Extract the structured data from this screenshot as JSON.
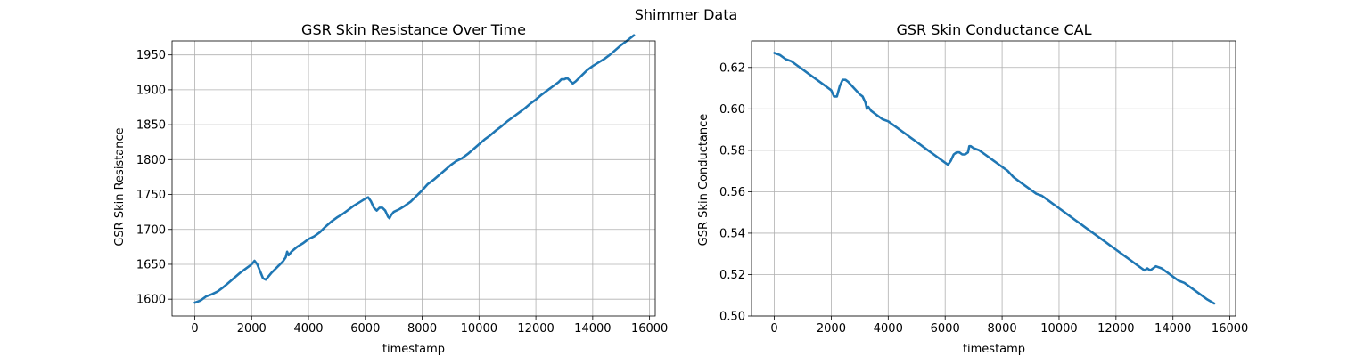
{
  "figure_title": "Shimmer Data",
  "colors": {
    "line": "#1f77b4",
    "grid": "#b0b0b0",
    "axis": "#000000"
  },
  "chart_data": [
    {
      "type": "line",
      "title": "GSR Skin Resistance Over Time",
      "xlabel": "timestamp",
      "ylabel": "GSR Skin Resistance",
      "xlim": [
        -800,
        16200
      ],
      "ylim": [
        1576,
        1970
      ],
      "xticks": [
        0,
        2000,
        4000,
        6000,
        8000,
        10000,
        12000,
        14000,
        16000
      ],
      "yticks": [
        1600,
        1650,
        1700,
        1750,
        1800,
        1850,
        1900,
        1950
      ],
      "grid": true,
      "series": [
        {
          "x": [
            0,
            200,
            400,
            600,
            800,
            1000,
            1200,
            1400,
            1600,
            1800,
            2000,
            2100,
            2200,
            2300,
            2400,
            2500,
            2700,
            2900,
            3100,
            3200,
            3250,
            3300,
            3400,
            3600,
            3800,
            4000,
            4200,
            4400,
            4600,
            4800,
            5000,
            5200,
            5400,
            5600,
            5800,
            6000,
            6100,
            6200,
            6300,
            6400,
            6500,
            6600,
            6700,
            6800,
            6850,
            6900,
            7000,
            7200,
            7400,
            7600,
            7800,
            8000,
            8200,
            8400,
            8600,
            8800,
            9000,
            9200,
            9400,
            9600,
            9800,
            10000,
            10200,
            10400,
            10600,
            10800,
            11000,
            11200,
            11400,
            11600,
            11800,
            12000,
            12200,
            12400,
            12600,
            12800,
            12900,
            13000,
            13100,
            13200,
            13300,
            13400,
            13600,
            13800,
            14000,
            14200,
            14400,
            14600,
            14800,
            15000,
            15200,
            15450
          ],
          "y": [
            1595,
            1598,
            1604,
            1607,
            1611,
            1617,
            1624,
            1631,
            1638,
            1644,
            1650,
            1655,
            1650,
            1640,
            1630,
            1628,
            1638,
            1646,
            1654,
            1660,
            1668,
            1663,
            1668,
            1675,
            1680,
            1686,
            1690,
            1696,
            1704,
            1711,
            1717,
            1722,
            1728,
            1734,
            1739,
            1744,
            1746,
            1740,
            1731,
            1727,
            1731,
            1731,
            1727,
            1718,
            1716,
            1720,
            1725,
            1729,
            1734,
            1740,
            1748,
            1756,
            1765,
            1771,
            1778,
            1785,
            1792,
            1798,
            1802,
            1808,
            1815,
            1822,
            1829,
            1835,
            1842,
            1848,
            1855,
            1861,
            1867,
            1873,
            1880,
            1886,
            1893,
            1899,
            1905,
            1911,
            1915,
            1915,
            1917,
            1913,
            1909,
            1912,
            1920,
            1928,
            1934,
            1939,
            1944,
            1950,
            1957,
            1964,
            1970,
            1978
          ]
        }
      ]
    },
    {
      "type": "line",
      "title": "GSR Skin Conductance CAL",
      "xlabel": "timestamp",
      "ylabel": "GSR Skin Conductance",
      "xlim": [
        -800,
        16200
      ],
      "ylim": [
        0.5,
        0.6328
      ],
      "xticks": [
        0,
        2000,
        4000,
        6000,
        8000,
        10000,
        12000,
        14000,
        16000
      ],
      "yticks": [
        0.5,
        0.52,
        0.54,
        0.56,
        0.58,
        0.6,
        0.62
      ],
      "ytick_labels": [
        "0.50",
        "0.52",
        "0.54",
        "0.56",
        "0.58",
        "0.60",
        "0.62"
      ],
      "grid": true,
      "series": [
        {
          "x": [
            0,
            200,
            400,
            600,
            800,
            1000,
            1200,
            1400,
            1600,
            1800,
            2000,
            2100,
            2200,
            2300,
            2400,
            2500,
            2600,
            2800,
            3000,
            3100,
            3200,
            3250,
            3300,
            3400,
            3600,
            3800,
            4000,
            4200,
            4400,
            4600,
            4800,
            5000,
            5200,
            5400,
            5600,
            5800,
            6000,
            6100,
            6200,
            6300,
            6400,
            6500,
            6600,
            6700,
            6800,
            6850,
            6900,
            7000,
            7200,
            7400,
            7600,
            7800,
            8000,
            8200,
            8400,
            8600,
            8800,
            9000,
            9200,
            9400,
            9600,
            9800,
            10000,
            10200,
            10400,
            10600,
            10800,
            11000,
            11200,
            11400,
            11600,
            11800,
            12000,
            12200,
            12400,
            12600,
            12800,
            12900,
            13000,
            13100,
            13200,
            13300,
            13400,
            13600,
            13800,
            14000,
            14200,
            14400,
            14600,
            14800,
            15000,
            15200,
            15450
          ],
          "y": [
            0.627,
            0.626,
            0.624,
            0.623,
            0.621,
            0.619,
            0.617,
            0.615,
            0.613,
            0.611,
            0.609,
            0.606,
            0.606,
            0.611,
            0.614,
            0.614,
            0.613,
            0.61,
            0.607,
            0.606,
            0.603,
            0.6,
            0.601,
            0.599,
            0.597,
            0.595,
            0.594,
            0.592,
            0.59,
            0.588,
            0.586,
            0.584,
            0.582,
            0.58,
            0.578,
            0.576,
            0.574,
            0.573,
            0.575,
            0.578,
            0.579,
            0.579,
            0.578,
            0.578,
            0.579,
            0.582,
            0.582,
            0.581,
            0.58,
            0.578,
            0.576,
            0.574,
            0.572,
            0.57,
            0.567,
            0.565,
            0.563,
            0.561,
            0.559,
            0.558,
            0.556,
            0.554,
            0.552,
            0.55,
            0.548,
            0.546,
            0.544,
            0.542,
            0.54,
            0.538,
            0.536,
            0.534,
            0.532,
            0.53,
            0.528,
            0.526,
            0.524,
            0.523,
            0.522,
            0.523,
            0.522,
            0.523,
            0.524,
            0.523,
            0.521,
            0.519,
            0.517,
            0.516,
            0.514,
            0.512,
            0.51,
            0.508,
            0.506
          ]
        }
      ]
    }
  ]
}
